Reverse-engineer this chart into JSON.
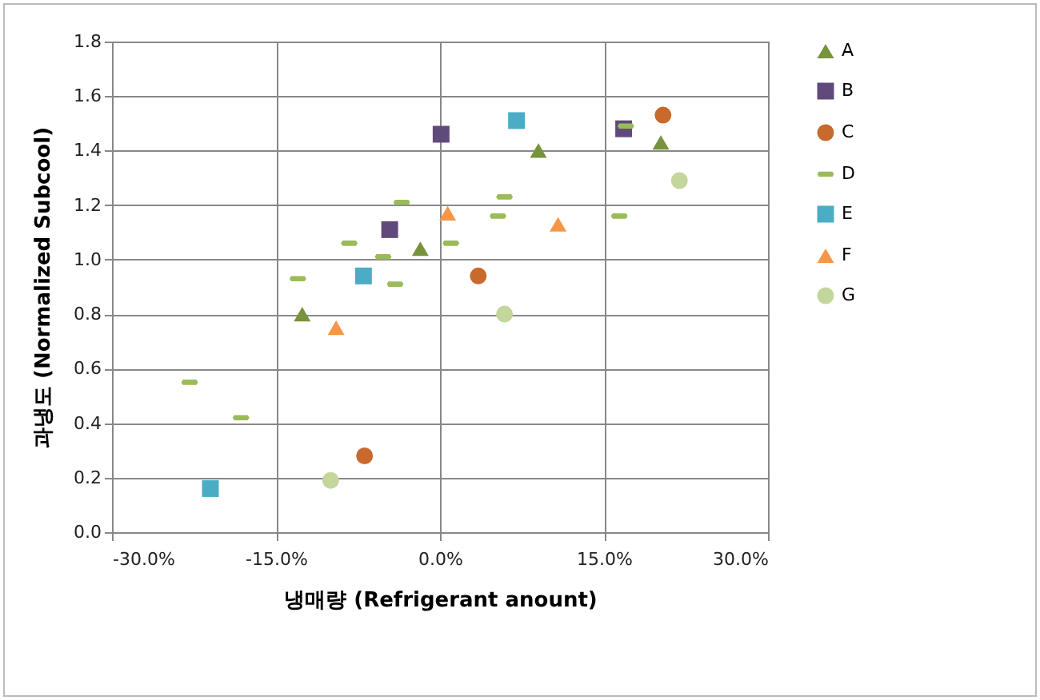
{
  "chart_data": {
    "type": "scatter",
    "xlabel": "냉매량 (Refrigerant anount)",
    "ylabel": "과냉도 (Normalized Subcool)",
    "xlim": [
      -30,
      30
    ],
    "xticks": [
      {
        "value": -30,
        "label": "-30.0%"
      },
      {
        "value": -15,
        "label": "-15.0%"
      },
      {
        "value": 0,
        "label": "0.0%"
      },
      {
        "value": 15,
        "label": "15.0%"
      },
      {
        "value": 30,
        "label": "30.0%"
      }
    ],
    "ylim": [
      0,
      1.8
    ],
    "yticks": [
      {
        "value": 0,
        "label": "0.0"
      },
      {
        "value": 0.2,
        "label": "0.2"
      },
      {
        "value": 0.4,
        "label": "0.4"
      },
      {
        "value": 0.6,
        "label": "0.6"
      },
      {
        "value": 0.8,
        "label": "0.8"
      },
      {
        "value": 1.0,
        "label": "1.0"
      },
      {
        "value": 1.2,
        "label": "1.2"
      },
      {
        "value": 1.4,
        "label": "1.4"
      },
      {
        "value": 1.6,
        "label": "1.6"
      },
      {
        "value": 1.8,
        "label": "1.8"
      }
    ],
    "grid": true,
    "legend": "right",
    "series": [
      {
        "name": "A",
        "color": "#77933c",
        "marker": "triangle",
        "x": [
          -12.6,
          -1.8,
          9.0,
          20.2
        ],
        "values": [
          0.8,
          1.04,
          1.4,
          1.43
        ]
      },
      {
        "name": "B",
        "color": "#604a7b",
        "marker": "square",
        "x": [
          0.1,
          -4.6,
          16.8
        ],
        "values": [
          1.46,
          1.11,
          1.48
        ]
      },
      {
        "name": "C",
        "color": "#c8692e",
        "marker": "circle",
        "x": [
          -6.9,
          3.5,
          20.4
        ],
        "values": [
          0.28,
          0.94,
          1.53
        ]
      },
      {
        "name": "D",
        "color": "#9bbb59",
        "x": [
          -22.9,
          -18.2,
          -13.0,
          -8.3,
          -5.2,
          -4.1,
          -3.5,
          1.0,
          5.9,
          5.3,
          16.4,
          17.0
        ],
        "values": [
          0.55,
          0.42,
          0.93,
          1.06,
          1.01,
          0.91,
          1.21,
          1.06,
          1.23,
          1.16,
          1.16,
          1.49
        ]
      },
      {
        "name": "E",
        "color": "#4bacc6",
        "marker": "square",
        "x": [
          -21.0,
          -7.0,
          7.0
        ],
        "values": [
          0.16,
          0.94,
          1.51
        ]
      },
      {
        "name": "F",
        "color": "#f79646",
        "marker": "triangle",
        "x": [
          -9.5,
          0.7,
          10.8
        ],
        "values": [
          0.75,
          1.17,
          1.13
        ]
      },
      {
        "name": "G",
        "color": "#c3d69b",
        "marker": "circle",
        "x": [
          -10.0,
          5.9,
          21.9
        ],
        "values": [
          0.19,
          0.8,
          1.29
        ]
      }
    ]
  }
}
